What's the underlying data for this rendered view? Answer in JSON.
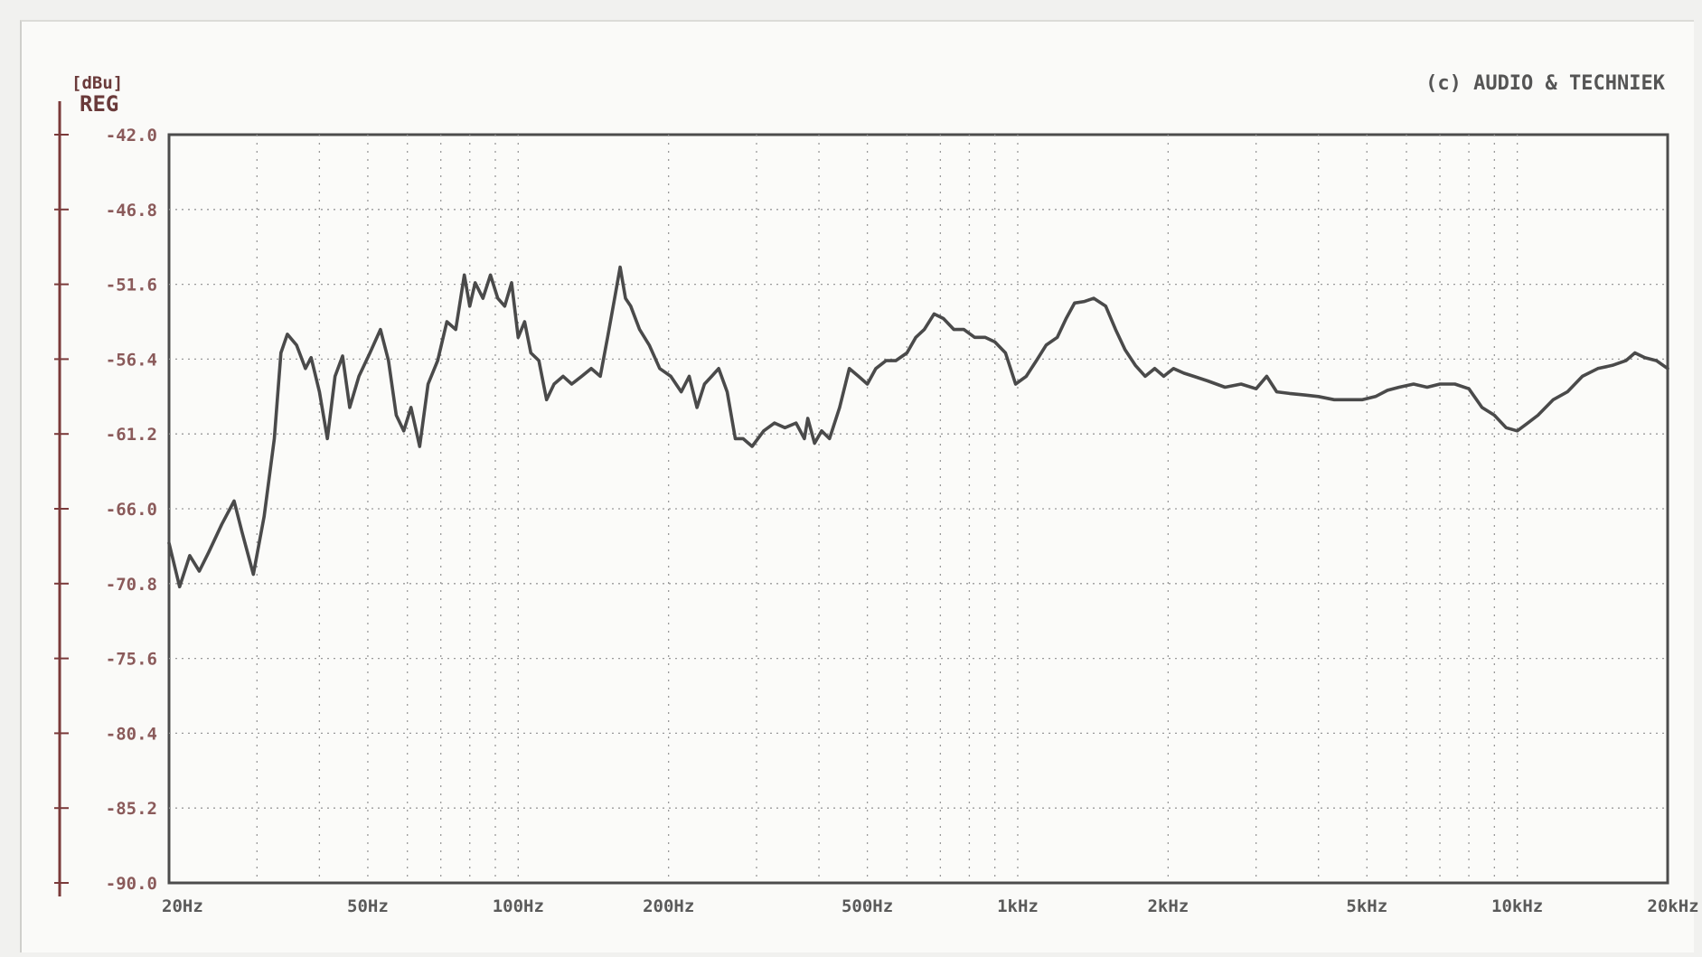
{
  "chart_data": {
    "type": "line",
    "unit_label": "[dBu]",
    "channel_label": "REG",
    "copyright": "(c) AUDIO & TECHNIEK",
    "x_scale": "log",
    "xlim": [
      20,
      20000
    ],
    "ylim": [
      -90.0,
      -42.0
    ],
    "grid": true,
    "y_ticks": [
      {
        "value": -42.0,
        "label": "-42.0"
      },
      {
        "value": -46.8,
        "label": "-46.8"
      },
      {
        "value": -51.6,
        "label": "-51.6"
      },
      {
        "value": -56.4,
        "label": "-56.4"
      },
      {
        "value": -61.2,
        "label": "-61.2"
      },
      {
        "value": -66.0,
        "label": "-66.0"
      },
      {
        "value": -70.8,
        "label": "-70.8"
      },
      {
        "value": -75.6,
        "label": "-75.6"
      },
      {
        "value": -80.4,
        "label": "-80.4"
      },
      {
        "value": -85.2,
        "label": "-85.2"
      },
      {
        "value": -90.0,
        "label": "-90.0"
      }
    ],
    "x_ticks": [
      {
        "value": 20,
        "label": "20Hz"
      },
      {
        "value": 50,
        "label": "50Hz"
      },
      {
        "value": 100,
        "label": "100Hz"
      },
      {
        "value": 200,
        "label": "200Hz"
      },
      {
        "value": 500,
        "label": "500Hz"
      },
      {
        "value": 1000,
        "label": "1kHz"
      },
      {
        "value": 2000,
        "label": "2kHz"
      },
      {
        "value": 5000,
        "label": "5kHz"
      },
      {
        "value": 10000,
        "label": "10kHz"
      },
      {
        "value": 20000,
        "label": "20kHz"
      }
    ],
    "series": [
      {
        "color": "#4a4a4a",
        "points": [
          [
            20,
            -68.2
          ],
          [
            21,
            -71.0
          ],
          [
            22,
            -69.0
          ],
          [
            23,
            -70.0
          ],
          [
            24,
            -68.8
          ],
          [
            25.5,
            -67.0
          ],
          [
            27,
            -65.5
          ],
          [
            28,
            -67.5
          ],
          [
            29.5,
            -70.2
          ],
          [
            31,
            -66.5
          ],
          [
            32.5,
            -61.5
          ],
          [
            33.5,
            -56.0
          ],
          [
            34.5,
            -54.8
          ],
          [
            36,
            -55.5
          ],
          [
            37.5,
            -57.0
          ],
          [
            38.5,
            -56.3
          ],
          [
            40,
            -58.5
          ],
          [
            41.5,
            -61.5
          ],
          [
            43,
            -57.5
          ],
          [
            44.5,
            -56.2
          ],
          [
            46,
            -59.5
          ],
          [
            48,
            -57.5
          ],
          [
            50.5,
            -56.0
          ],
          [
            53,
            -54.5
          ],
          [
            55,
            -56.5
          ],
          [
            57,
            -60.0
          ],
          [
            59,
            -61.0
          ],
          [
            61,
            -59.5
          ],
          [
            63.5,
            -62.0
          ],
          [
            66,
            -58.0
          ],
          [
            69,
            -56.5
          ],
          [
            72,
            -54.0
          ],
          [
            75,
            -54.5
          ],
          [
            78,
            -51.0
          ],
          [
            80,
            -53.0
          ],
          [
            82,
            -51.5
          ],
          [
            85,
            -52.5
          ],
          [
            88,
            -51.0
          ],
          [
            91,
            -52.5
          ],
          [
            94,
            -53.0
          ],
          [
            97,
            -51.5
          ],
          [
            100,
            -55.0
          ],
          [
            103,
            -54.0
          ],
          [
            106,
            -56.0
          ],
          [
            110,
            -56.5
          ],
          [
            114,
            -59.0
          ],
          [
            118,
            -58.0
          ],
          [
            123,
            -57.5
          ],
          [
            128,
            -58.0
          ],
          [
            134,
            -57.5
          ],
          [
            140,
            -57.0
          ],
          [
            146,
            -57.5
          ],
          [
            151,
            -55.0
          ],
          [
            156,
            -52.5
          ],
          [
            160,
            -50.5
          ],
          [
            164,
            -52.5
          ],
          [
            168,
            -53.0
          ],
          [
            175,
            -54.5
          ],
          [
            183,
            -55.5
          ],
          [
            192,
            -57.0
          ],
          [
            202,
            -57.5
          ],
          [
            212,
            -58.5
          ],
          [
            220,
            -57.5
          ],
          [
            228,
            -59.5
          ],
          [
            236,
            -58.0
          ],
          [
            244,
            -57.5
          ],
          [
            252,
            -57.0
          ],
          [
            262,
            -58.5
          ],
          [
            272,
            -61.5
          ],
          [
            282,
            -61.5
          ],
          [
            294,
            -62.0
          ],
          [
            310,
            -61.0
          ],
          [
            326,
            -60.5
          ],
          [
            342,
            -60.8
          ],
          [
            360,
            -60.5
          ],
          [
            374,
            -61.5
          ],
          [
            380,
            -60.2
          ],
          [
            392,
            -61.8
          ],
          [
            405,
            -61.0
          ],
          [
            420,
            -61.5
          ],
          [
            440,
            -59.5
          ],
          [
            460,
            -57.0
          ],
          [
            480,
            -57.5
          ],
          [
            500,
            -58.0
          ],
          [
            520,
            -57.0
          ],
          [
            545,
            -56.5
          ],
          [
            570,
            -56.5
          ],
          [
            600,
            -56.0
          ],
          [
            625,
            -55.0
          ],
          [
            650,
            -54.5
          ],
          [
            680,
            -53.5
          ],
          [
            710,
            -53.8
          ],
          [
            745,
            -54.5
          ],
          [
            780,
            -54.5
          ],
          [
            820,
            -55.0
          ],
          [
            860,
            -55.0
          ],
          [
            900,
            -55.3
          ],
          [
            945,
            -56.0
          ],
          [
            990,
            -58.0
          ],
          [
            1040,
            -57.5
          ],
          [
            1090,
            -56.5
          ],
          [
            1140,
            -55.5
          ],
          [
            1200,
            -55.0
          ],
          [
            1250,
            -53.8
          ],
          [
            1300,
            -52.8
          ],
          [
            1360,
            -52.7
          ],
          [
            1420,
            -52.5
          ],
          [
            1500,
            -53.0
          ],
          [
            1570,
            -54.5
          ],
          [
            1640,
            -55.8
          ],
          [
            1720,
            -56.8
          ],
          [
            1800,
            -57.5
          ],
          [
            1880,
            -57.0
          ],
          [
            1960,
            -57.5
          ],
          [
            2050,
            -57.0
          ],
          [
            2150,
            -57.3
          ],
          [
            2250,
            -57.5
          ],
          [
            2400,
            -57.8
          ],
          [
            2600,
            -58.2
          ],
          [
            2800,
            -58.0
          ],
          [
            3000,
            -58.3
          ],
          [
            3150,
            -57.5
          ],
          [
            3300,
            -58.5
          ],
          [
            3500,
            -58.6
          ],
          [
            3750,
            -58.7
          ],
          [
            4000,
            -58.8
          ],
          [
            4300,
            -59.0
          ],
          [
            4600,
            -59.0
          ],
          [
            4900,
            -59.0
          ],
          [
            5200,
            -58.8
          ],
          [
            5500,
            -58.4
          ],
          [
            5800,
            -58.2
          ],
          [
            6200,
            -58.0
          ],
          [
            6600,
            -58.2
          ],
          [
            7000,
            -58.0
          ],
          [
            7500,
            -58.0
          ],
          [
            8000,
            -58.3
          ],
          [
            8500,
            -59.5
          ],
          [
            9000,
            -60.0
          ],
          [
            9500,
            -60.8
          ],
          [
            10000,
            -61.0
          ],
          [
            10500,
            -60.5
          ],
          [
            11000,
            -60.0
          ],
          [
            11800,
            -59.0
          ],
          [
            12600,
            -58.5
          ],
          [
            13500,
            -57.5
          ],
          [
            14500,
            -57.0
          ],
          [
            15500,
            -56.8
          ],
          [
            16500,
            -56.5
          ],
          [
            17200,
            -56.0
          ],
          [
            18000,
            -56.3
          ],
          [
            19000,
            -56.5
          ],
          [
            20000,
            -57.0
          ]
        ]
      }
    ]
  }
}
